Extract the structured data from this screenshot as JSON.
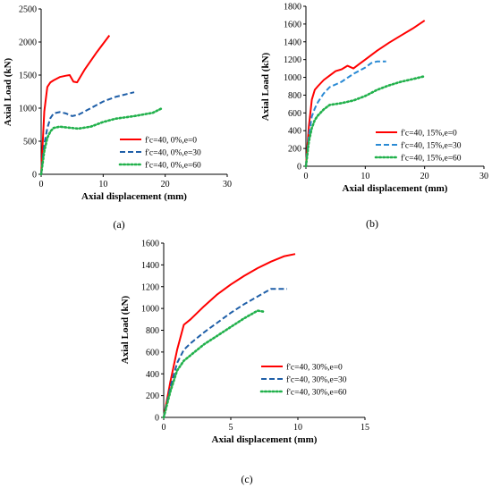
{
  "chart_data": [
    {
      "panel_label": "(a)",
      "type": "line",
      "xlabel": "Axial displacement (mm)",
      "ylabel": "Axial Load (kN)",
      "xlim": [
        0,
        30
      ],
      "ylim": [
        0,
        2500
      ],
      "xticks": [
        0,
        10,
        20,
        30
      ],
      "yticks": [
        0,
        500,
        1000,
        1500,
        2000,
        2500
      ],
      "grid": false,
      "legend": "lower-right",
      "series": [
        {
          "name": "f'c=40, 0%,e=0",
          "color": "#ff0000",
          "dash": "solid",
          "x": [
            0,
            0.5,
            1,
            1.5,
            2,
            3,
            4,
            4.6,
            5.2,
            5.8,
            7,
            9,
            11
          ],
          "y": [
            0,
            950,
            1320,
            1390,
            1420,
            1470,
            1490,
            1500,
            1400,
            1390,
            1580,
            1850,
            2100
          ]
        },
        {
          "name": "f'c=40, 0%,e=30",
          "color": "#1f5fa8",
          "dash": "dashed",
          "x": [
            0,
            0.5,
            1,
            1.5,
            2,
            3,
            4,
            5,
            6,
            8,
            10,
            12,
            15
          ],
          "y": [
            0,
            450,
            700,
            850,
            920,
            940,
            920,
            880,
            900,
            1000,
            1100,
            1170,
            1240
          ]
        },
        {
          "name": "f'c=40, 0%,e=60",
          "color": "#22b14c",
          "dash": "dotted",
          "x": [
            0,
            0.5,
            1,
            1.5,
            2,
            3,
            4,
            6,
            8,
            10,
            12,
            15,
            18,
            19.5
          ],
          "y": [
            0,
            350,
            550,
            650,
            700,
            720,
            710,
            690,
            720,
            790,
            840,
            880,
            930,
            1000
          ]
        }
      ]
    },
    {
      "panel_label": "(b)",
      "type": "line",
      "xlabel": "Axial displacement (mm)",
      "ylabel": "Axial Load (kN)",
      "xlim": [
        0,
        30
      ],
      "ylim": [
        0,
        1800
      ],
      "xticks": [
        0,
        10,
        20,
        30
      ],
      "yticks": [
        0,
        200,
        400,
        600,
        800,
        1000,
        1200,
        1400,
        1600,
        1800
      ],
      "grid": false,
      "legend": "lower-right",
      "series": [
        {
          "name": "f'c=40, 15%,e=0",
          "color": "#ff0000",
          "dash": "solid",
          "x": [
            0,
            0.5,
            1,
            1.5,
            2,
            3,
            4,
            5,
            6,
            7,
            8,
            9,
            10,
            12,
            14,
            16,
            18,
            20
          ],
          "y": [
            0,
            450,
            750,
            860,
            900,
            970,
            1020,
            1070,
            1090,
            1130,
            1100,
            1150,
            1200,
            1300,
            1390,
            1470,
            1550,
            1640
          ]
        },
        {
          "name": "f'c=40, 15%,e=30",
          "color": "#2a8ad4",
          "dash": "dashed",
          "x": [
            0,
            0.5,
            1,
            1.5,
            2,
            3,
            4,
            5,
            6,
            8,
            10,
            11,
            12,
            13.5
          ],
          "y": [
            0,
            350,
            560,
            650,
            720,
            820,
            890,
            920,
            950,
            1040,
            1110,
            1160,
            1180,
            1180
          ]
        },
        {
          "name": "f'c=40, 15%,e=60",
          "color": "#22b14c",
          "dash": "dotted",
          "x": [
            0,
            0.5,
            1,
            1.5,
            2,
            3,
            4,
            5,
            6,
            8,
            10,
            12,
            14,
            16,
            18,
            19.8
          ],
          "y": [
            0,
            280,
            430,
            520,
            570,
            640,
            690,
            700,
            710,
            740,
            790,
            860,
            910,
            950,
            980,
            1010
          ]
        }
      ]
    },
    {
      "panel_label": "(c)",
      "type": "line",
      "xlabel": "Axial displacement (mm)",
      "ylabel": "Axial Load (kN)",
      "xlim": [
        0,
        15
      ],
      "ylim": [
        0,
        1600
      ],
      "xticks": [
        0,
        5,
        10,
        15
      ],
      "yticks": [
        0,
        200,
        400,
        600,
        800,
        1000,
        1200,
        1400,
        1600
      ],
      "grid": false,
      "legend": "lower-right",
      "series": [
        {
          "name": "f'c=40, 30%,e=0",
          "color": "#ff0000",
          "dash": "solid",
          "x": [
            0,
            0.5,
            1,
            1.5,
            2,
            3,
            4,
            5,
            6,
            7,
            8,
            9,
            9.8
          ],
          "y": [
            0,
            330,
            620,
            850,
            900,
            1020,
            1130,
            1220,
            1300,
            1370,
            1430,
            1480,
            1500
          ]
        },
        {
          "name": "f'c=40, 30%,e=30",
          "color": "#1f5fa8",
          "dash": "dashed",
          "x": [
            0,
            0.5,
            1,
            1.5,
            2,
            3,
            4,
            5,
            6,
            7,
            8,
            8.5,
            9.2
          ],
          "y": [
            0,
            280,
            500,
            620,
            680,
            780,
            870,
            960,
            1040,
            1110,
            1180,
            1180,
            1180
          ]
        },
        {
          "name": "f'c=40, 30%,e=60",
          "color": "#22b14c",
          "dash": "dotted",
          "x": [
            0,
            0.5,
            1,
            1.5,
            2,
            3,
            4,
            5,
            6,
            7,
            7.5
          ],
          "y": [
            0,
            240,
            430,
            520,
            570,
            670,
            750,
            830,
            910,
            980,
            970
          ]
        }
      ]
    }
  ]
}
